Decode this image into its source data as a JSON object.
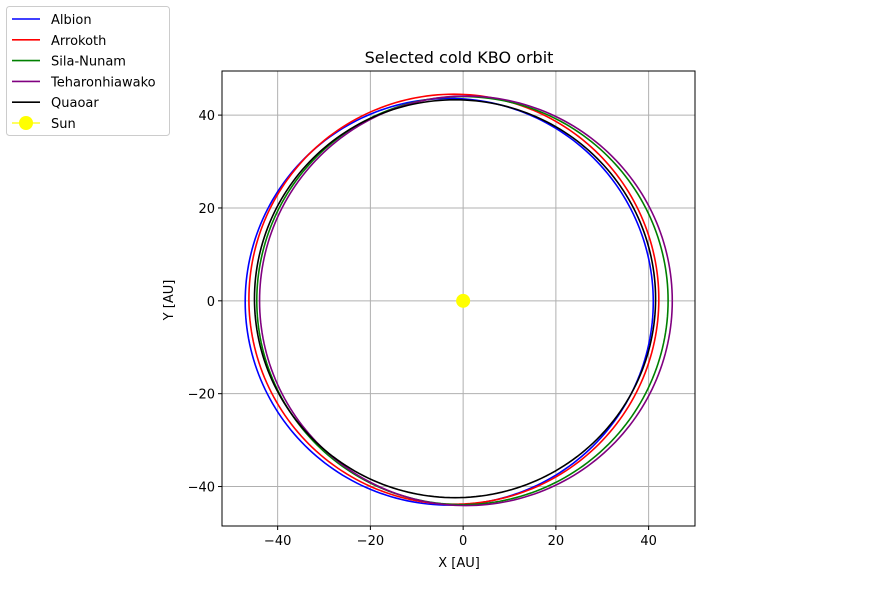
{
  "chart_data": {
    "type": "line",
    "title": "Selected cold KBO orbit",
    "xlabel": "X [AU]",
    "ylabel": "Y [AU]",
    "xlim": [
      -52,
      50
    ],
    "ylim": [
      -48.5,
      49.5
    ],
    "xticks": [
      -40,
      -20,
      0,
      20,
      40
    ],
    "yticks": [
      -40,
      -20,
      0,
      20,
      40
    ],
    "grid": true,
    "legend_position": "outside upper-left",
    "series": [
      {
        "name": "Albion",
        "color": "#0000ff",
        "x_range": [
          -47.0,
          41.0
        ],
        "y_range": [
          -44.0,
          43.6
        ]
      },
      {
        "name": "Arrokoth",
        "color": "#ff0000",
        "x_range": [
          -46.2,
          42.2
        ],
        "y_range": [
          -43.8,
          44.5
        ]
      },
      {
        "name": "Sila-Nunam",
        "color": "#008000",
        "x_range": [
          -44.5,
          44.2
        ],
        "y_range": [
          -43.9,
          44.0
        ]
      },
      {
        "name": "Teharonhiawako",
        "color": "#800080",
        "x_range": [
          -43.9,
          45.1
        ],
        "y_range": [
          -44.1,
          44.1
        ]
      },
      {
        "name": "Quaoar",
        "color": "#000000",
        "x_range": [
          -45.0,
          41.5
        ],
        "y_range": [
          -42.4,
          43.3
        ]
      }
    ],
    "points": [
      {
        "name": "Sun",
        "x": 0,
        "y": 0,
        "color": "#ffff00"
      }
    ]
  }
}
